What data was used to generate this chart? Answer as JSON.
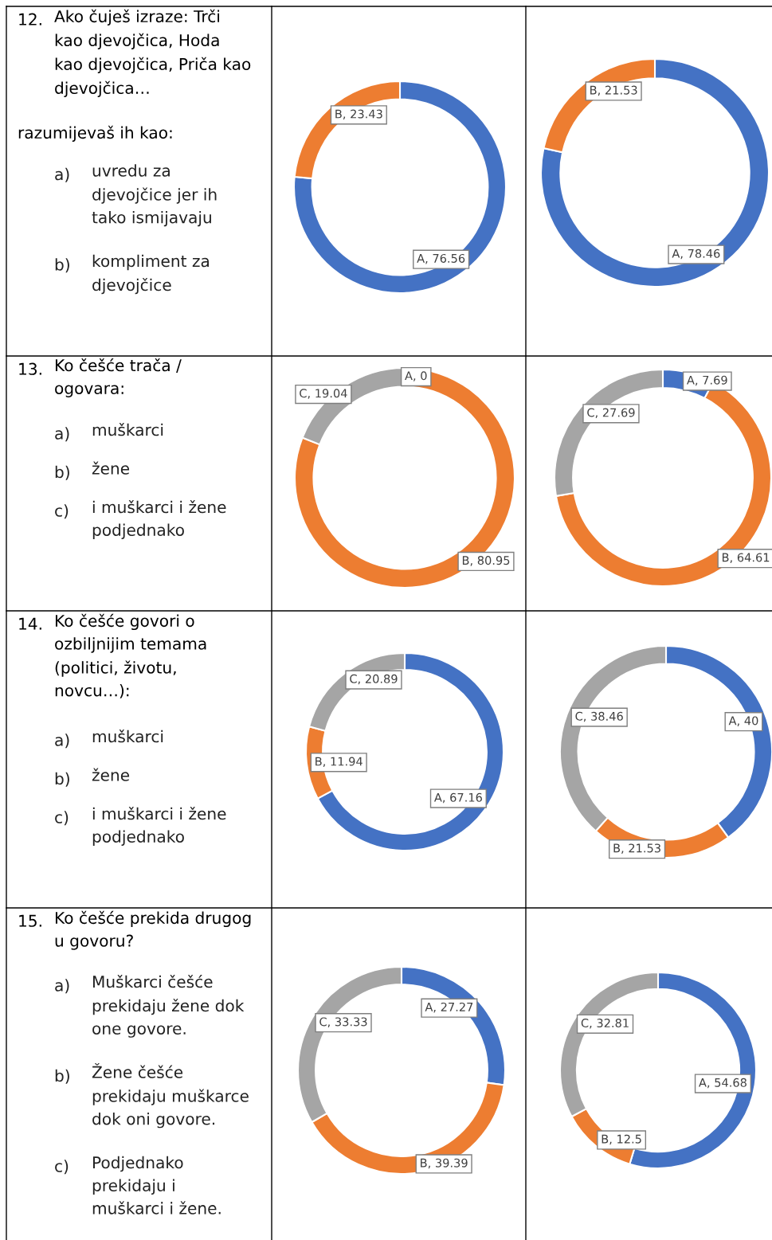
{
  "chart_data": [
    {
      "type": "other",
      "title": "12. Ako čuješ izraze: Trči\nkao djevojčica, Hoda\nkao djevojčica, Priča kao\ndjevojčica…",
      "subtitle": "razumijevaš ih kao:",
      "annotations": [
        "a) uvredu za\ndjevojčice jer ih\ntako ismijavaju",
        "b) kompliment za\ndjevojčice"
      ]
    },
    {
      "type": "donut",
      "values": [
        76.56,
        23.43
      ],
      "colors": [
        "#4472c4",
        "#ed7d31"
      ],
      "value_labels": [
        "A, 76.56",
        "B, 23.43"
      ]
    },
    {
      "type": "donut",
      "values": [
        78.46,
        21.53
      ],
      "colors": [
        "#4472c4",
        "#ed7d31"
      ],
      "value_labels": [
        "A, 78.46",
        "B, 21.53"
      ]
    },
    {
      "type": "other",
      "title": "13. Ko češće trača /\nogovara:",
      "annotations": [
        "a) muškarci",
        "b) žene",
        "c) i muškarci i žene\npodjednako"
      ]
    },
    {
      "type": "donut",
      "values": [
        0,
        80.95,
        19.04
      ],
      "colors": [
        "#4472c4",
        "#ed7d31",
        "#a5a5a5"
      ],
      "value_labels": [
        "A, 0",
        "B, 80.95",
        "C, 19.04"
      ]
    },
    {
      "type": "donut",
      "values": [
        7.69,
        64.61,
        27.69
      ],
      "colors": [
        "#4472c4",
        "#ed7d31",
        "#a5a5a5"
      ],
      "value_labels": [
        "A, 7.69",
        "B, 64.61",
        "C, 27.69"
      ]
    },
    {
      "type": "other",
      "title": "14. Ko češće govori o\nozbiljnijim temama\n(politici, životu,\nnovcu…):",
      "annotations": [
        "a) muškarci",
        "b) žene",
        "c) i muškarci i žene\npodjednako"
      ]
    },
    {
      "type": "donut",
      "values": [
        67.16,
        11.94,
        20.89
      ],
      "colors": [
        "#4472c4",
        "#ed7d31",
        "#a5a5a5"
      ],
      "value_labels": [
        "A, 67.16",
        "B, 11.94",
        "C, 20.89"
      ]
    },
    {
      "type": "donut",
      "values": [
        40,
        21.53,
        38.46
      ],
      "colors": [
        "#4472c4",
        "#ed7d31",
        "#a5a5a5"
      ],
      "value_labels": [
        "A, 40",
        "B, 21.53",
        "C, 38.46"
      ]
    },
    {
      "type": "other",
      "title": "15. Ko češće prekida drugog\nu govoru?",
      "annotations": [
        "a) Muškarci češće\nprekidaju žene dok\none govore.",
        "b) Žene češće\nprekidaju muškarce\ndok oni govore.",
        "c) Podjednako\nprekidaju i\nmuškarci i žene."
      ]
    },
    {
      "type": "donut",
      "values": [
        27.27,
        39.39,
        33.33
      ],
      "colors": [
        "#4472c4",
        "#ed7d31",
        "#a5a5a5"
      ],
      "value_labels": [
        "A, 27.27",
        "B, 39.39",
        "C, 33.33"
      ]
    },
    {
      "type": "donut",
      "values": [
        54.68,
        12.5,
        32.81
      ],
      "colors": [
        "#4472c4",
        "#ed7d31",
        "#a5a5a5"
      ],
      "value_labels": [
        "A, 54.68",
        "B, 12.5",
        "C, 32.81"
      ]
    }
  ]
}
